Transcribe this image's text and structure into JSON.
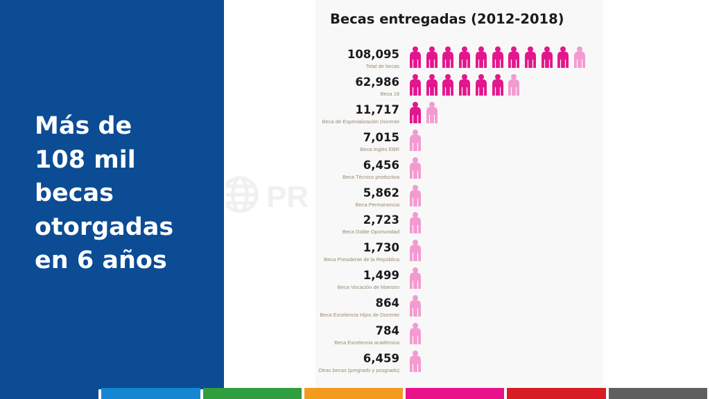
{
  "headline": [
    "Más de",
    "108 mil",
    "becas",
    "otorgadas",
    "en 6 años"
  ],
  "watermark": {
    "text": "PR"
  },
  "colors": {
    "panel": "#0b4c94",
    "icon_full": "#e3178d",
    "icon_light": "#f39bd0",
    "bottom_bar": [
      "#0b4c94",
      "#1587d2",
      "#2e9e3e",
      "#f39a1f",
      "#e9128a",
      "#d81c23",
      "#5f5f5f"
    ]
  },
  "chart_data": {
    "type": "pictograph",
    "title": "Becas entregadas (2012-2018)",
    "icon": "person-icon",
    "units_per_icon": 10000,
    "categories": [
      "Total de becas",
      "Beca 18",
      "Beca de Especialización Docente",
      "Beca Inglés EBR",
      "Beca Técnico productiva",
      "Beca Permanencia",
      "Beca Doble Oportunidad",
      "Beca Presidente de la República",
      "Beca Vocación de Maestro",
      "Beca Excelencia Hijos de Docente",
      "Beca Excelencia académica",
      "Otras becas (pregrado y posgrado)"
    ],
    "values": [
      108095,
      62986,
      11717,
      7015,
      6456,
      5862,
      2723,
      1730,
      1499,
      864,
      784,
      6459
    ],
    "value_labels": [
      "108,095",
      "62,986",
      "11,717",
      "7,015",
      "6,456",
      "5,862",
      "2,723",
      "1,730",
      "1,499",
      "864",
      "784",
      "6,459"
    ]
  }
}
